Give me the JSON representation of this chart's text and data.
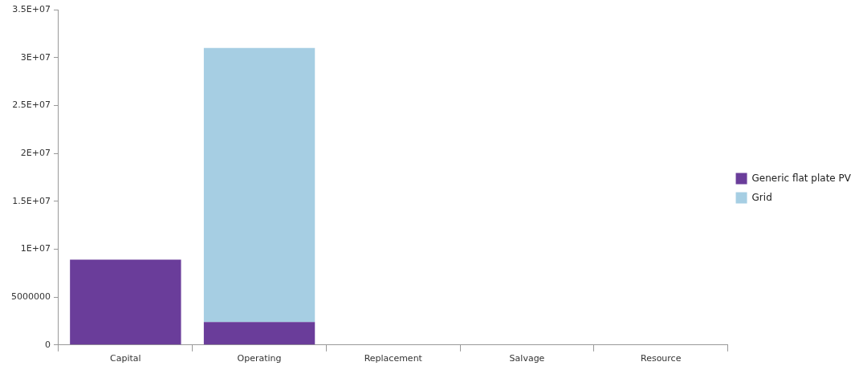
{
  "chart_data": {
    "type": "bar",
    "stacked": true,
    "categories": [
      "Capital",
      "Operating",
      "Replacement",
      "Salvage",
      "Resource"
    ],
    "series": [
      {
        "name": "Generic flat plate PV",
        "color": "#6a3d9a",
        "values": [
          8900000,
          2400000,
          0,
          0,
          0
        ]
      },
      {
        "name": "Grid",
        "color": "#a6cee3",
        "values": [
          0,
          28600000,
          0,
          0,
          0
        ]
      }
    ],
    "ylim": [
      0,
      35000000
    ],
    "yticks": [
      0,
      5000000,
      {
        "value": 10000000,
        "label": "1E+07"
      },
      {
        "value": 15000000,
        "label": "1.5E+07"
      },
      {
        "value": 20000000,
        "label": "2E+07"
      },
      {
        "value": 25000000,
        "label": "2.5E+07"
      },
      {
        "value": 30000000,
        "label": "3E+07"
      },
      {
        "value": 35000000,
        "label": "3.5E+07"
      }
    ],
    "grid": false,
    "legend": "right"
  }
}
